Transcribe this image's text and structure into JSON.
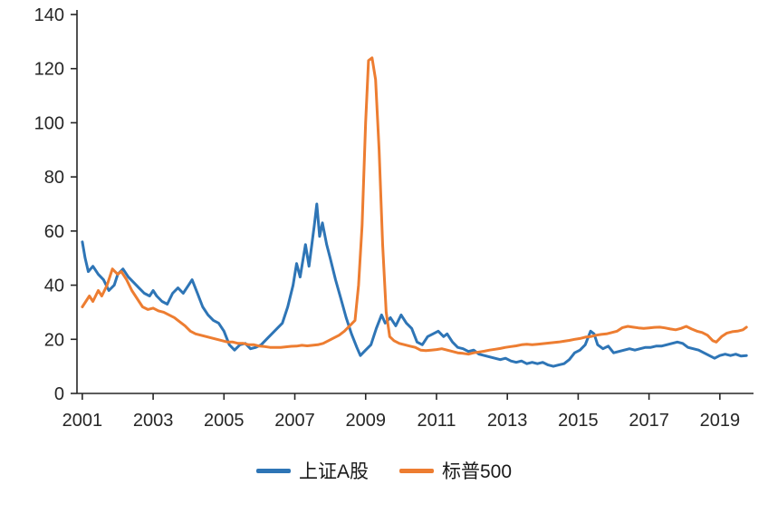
{
  "chart_data": {
    "type": "line",
    "title": "",
    "xlabel": "",
    "ylabel": "",
    "grid": false,
    "legend_position": "bottom",
    "background_color": "#ffffff",
    "axis_color": "#262626",
    "ylim": [
      0,
      140
    ],
    "yticks": [
      0,
      20,
      40,
      60,
      80,
      100,
      120,
      140
    ],
    "xlim": [
      2000.85,
      2019.95
    ],
    "xticks": [
      2001,
      2003,
      2005,
      2007,
      2009,
      2011,
      2013,
      2015,
      2017,
      2019
    ],
    "series": [
      {
        "name": "上证A股",
        "color": "#2E75B6",
        "points": [
          [
            2001.0,
            56
          ],
          [
            2001.08,
            50
          ],
          [
            2001.17,
            45
          ],
          [
            2001.3,
            47
          ],
          [
            2001.45,
            44
          ],
          [
            2001.6,
            42
          ],
          [
            2001.75,
            38
          ],
          [
            2001.9,
            40
          ],
          [
            2002.0,
            44
          ],
          [
            2002.15,
            46
          ],
          [
            2002.3,
            43
          ],
          [
            2002.45,
            41
          ],
          [
            2002.6,
            39
          ],
          [
            2002.75,
            37
          ],
          [
            2002.9,
            36
          ],
          [
            2003.0,
            38
          ],
          [
            2003.1,
            36
          ],
          [
            2003.25,
            34
          ],
          [
            2003.4,
            33
          ],
          [
            2003.55,
            37
          ],
          [
            2003.7,
            39
          ],
          [
            2003.85,
            37
          ],
          [
            2004.0,
            40
          ],
          [
            2004.1,
            42
          ],
          [
            2004.25,
            37
          ],
          [
            2004.4,
            32
          ],
          [
            2004.55,
            29
          ],
          [
            2004.7,
            27
          ],
          [
            2004.85,
            26
          ],
          [
            2005.0,
            23
          ],
          [
            2005.15,
            18
          ],
          [
            2005.3,
            16
          ],
          [
            2005.45,
            18
          ],
          [
            2005.6,
            18.5
          ],
          [
            2005.75,
            16.5
          ],
          [
            2005.9,
            17
          ],
          [
            2006.05,
            18
          ],
          [
            2006.2,
            20
          ],
          [
            2006.35,
            22
          ],
          [
            2006.5,
            24
          ],
          [
            2006.65,
            26
          ],
          [
            2006.8,
            32
          ],
          [
            2006.95,
            40
          ],
          [
            2007.05,
            48
          ],
          [
            2007.15,
            43
          ],
          [
            2007.3,
            55
          ],
          [
            2007.4,
            47
          ],
          [
            2007.55,
            62
          ],
          [
            2007.62,
            70
          ],
          [
            2007.7,
            58
          ],
          [
            2007.78,
            63
          ],
          [
            2007.9,
            55
          ],
          [
            2008.0,
            50
          ],
          [
            2008.15,
            42
          ],
          [
            2008.3,
            35
          ],
          [
            2008.45,
            28
          ],
          [
            2008.6,
            22
          ],
          [
            2008.75,
            17
          ],
          [
            2008.85,
            14
          ],
          [
            2009.0,
            16
          ],
          [
            2009.15,
            18
          ],
          [
            2009.3,
            24
          ],
          [
            2009.45,
            29
          ],
          [
            2009.55,
            26
          ],
          [
            2009.7,
            28
          ],
          [
            2009.85,
            25
          ],
          [
            2010.0,
            29
          ],
          [
            2010.15,
            26
          ],
          [
            2010.3,
            24
          ],
          [
            2010.45,
            19
          ],
          [
            2010.6,
            18
          ],
          [
            2010.75,
            21
          ],
          [
            2010.9,
            22
          ],
          [
            2011.05,
            23
          ],
          [
            2011.2,
            21
          ],
          [
            2011.3,
            22
          ],
          [
            2011.45,
            19
          ],
          [
            2011.6,
            17
          ],
          [
            2011.75,
            16.5
          ],
          [
            2011.9,
            15.5
          ],
          [
            2012.05,
            16
          ],
          [
            2012.2,
            14.5
          ],
          [
            2012.35,
            14
          ],
          [
            2012.5,
            13.5
          ],
          [
            2012.65,
            13
          ],
          [
            2012.8,
            12.5
          ],
          [
            2012.95,
            13
          ],
          [
            2013.1,
            12
          ],
          [
            2013.25,
            11.5
          ],
          [
            2013.4,
            12
          ],
          [
            2013.55,
            11
          ],
          [
            2013.7,
            11.5
          ],
          [
            2013.85,
            11
          ],
          [
            2014.0,
            11.5
          ],
          [
            2014.15,
            10.5
          ],
          [
            2014.3,
            10
          ],
          [
            2014.45,
            10.5
          ],
          [
            2014.6,
            11
          ],
          [
            2014.75,
            12.5
          ],
          [
            2014.9,
            15
          ],
          [
            2015.05,
            16
          ],
          [
            2015.2,
            18
          ],
          [
            2015.35,
            23
          ],
          [
            2015.45,
            22
          ],
          [
            2015.55,
            18
          ],
          [
            2015.7,
            16.5
          ],
          [
            2015.85,
            17.5
          ],
          [
            2016.0,
            15
          ],
          [
            2016.15,
            15.5
          ],
          [
            2016.3,
            16
          ],
          [
            2016.45,
            16.5
          ],
          [
            2016.6,
            16
          ],
          [
            2016.75,
            16.5
          ],
          [
            2016.9,
            17
          ],
          [
            2017.05,
            17
          ],
          [
            2017.2,
            17.5
          ],
          [
            2017.35,
            17.5
          ],
          [
            2017.5,
            18
          ],
          [
            2017.65,
            18.5
          ],
          [
            2017.8,
            19
          ],
          [
            2017.95,
            18.5
          ],
          [
            2018.1,
            17
          ],
          [
            2018.25,
            16.5
          ],
          [
            2018.4,
            16
          ],
          [
            2018.55,
            15
          ],
          [
            2018.7,
            14
          ],
          [
            2018.85,
            13
          ],
          [
            2019.0,
            14
          ],
          [
            2019.15,
            14.5
          ],
          [
            2019.3,
            14
          ],
          [
            2019.45,
            14.5
          ],
          [
            2019.6,
            13.8
          ],
          [
            2019.75,
            14
          ]
        ]
      },
      {
        "name": "标普500",
        "color": "#ED7D31",
        "points": [
          [
            2001.0,
            32
          ],
          [
            2001.1,
            34
          ],
          [
            2001.2,
            36
          ],
          [
            2001.3,
            34
          ],
          [
            2001.45,
            38
          ],
          [
            2001.55,
            36
          ],
          [
            2001.7,
            40
          ],
          [
            2001.85,
            46
          ],
          [
            2002.0,
            44
          ],
          [
            2002.1,
            45
          ],
          [
            2002.25,
            42
          ],
          [
            2002.4,
            38
          ],
          [
            2002.55,
            35
          ],
          [
            2002.7,
            32
          ],
          [
            2002.85,
            31
          ],
          [
            2003.0,
            31.5
          ],
          [
            2003.15,
            30.5
          ],
          [
            2003.3,
            30
          ],
          [
            2003.45,
            29
          ],
          [
            2003.6,
            28
          ],
          [
            2003.75,
            26.5
          ],
          [
            2003.9,
            25
          ],
          [
            2004.05,
            23
          ],
          [
            2004.2,
            22
          ],
          [
            2004.35,
            21.5
          ],
          [
            2004.5,
            21
          ],
          [
            2004.65,
            20.5
          ],
          [
            2004.8,
            20
          ],
          [
            2004.95,
            19.5
          ],
          [
            2005.1,
            19
          ],
          [
            2005.25,
            19
          ],
          [
            2005.4,
            18.5
          ],
          [
            2005.55,
            18.5
          ],
          [
            2005.7,
            18
          ],
          [
            2005.85,
            18
          ],
          [
            2006.0,
            17.5
          ],
          [
            2006.15,
            17.3
          ],
          [
            2006.3,
            17
          ],
          [
            2006.45,
            17
          ],
          [
            2006.6,
            17
          ],
          [
            2006.75,
            17.2
          ],
          [
            2006.9,
            17.4
          ],
          [
            2007.05,
            17.5
          ],
          [
            2007.2,
            17.8
          ],
          [
            2007.35,
            17.6
          ],
          [
            2007.5,
            17.8
          ],
          [
            2007.65,
            18
          ],
          [
            2007.8,
            18.5
          ],
          [
            2007.95,
            19.5
          ],
          [
            2008.1,
            20.5
          ],
          [
            2008.25,
            21.5
          ],
          [
            2008.4,
            23
          ],
          [
            2008.55,
            25
          ],
          [
            2008.7,
            27
          ],
          [
            2008.8,
            40
          ],
          [
            2008.9,
            62
          ],
          [
            2009.0,
            100
          ],
          [
            2009.08,
            123
          ],
          [
            2009.18,
            124
          ],
          [
            2009.28,
            116
          ],
          [
            2009.38,
            90
          ],
          [
            2009.48,
            55
          ],
          [
            2009.58,
            30
          ],
          [
            2009.68,
            21
          ],
          [
            2009.8,
            19.5
          ],
          [
            2009.95,
            18.5
          ],
          [
            2010.1,
            18
          ],
          [
            2010.25,
            17.5
          ],
          [
            2010.4,
            17
          ],
          [
            2010.55,
            16
          ],
          [
            2010.7,
            15.8
          ],
          [
            2010.85,
            16
          ],
          [
            2011.0,
            16.2
          ],
          [
            2011.15,
            16.5
          ],
          [
            2011.3,
            16
          ],
          [
            2011.45,
            15.5
          ],
          [
            2011.6,
            15
          ],
          [
            2011.75,
            14.8
          ],
          [
            2011.9,
            14.5
          ],
          [
            2012.05,
            15
          ],
          [
            2012.2,
            15.3
          ],
          [
            2012.35,
            15.6
          ],
          [
            2012.5,
            16
          ],
          [
            2012.65,
            16.3
          ],
          [
            2012.8,
            16.6
          ],
          [
            2012.95,
            17
          ],
          [
            2013.1,
            17.3
          ],
          [
            2013.25,
            17.6
          ],
          [
            2013.4,
            18
          ],
          [
            2013.55,
            18.2
          ],
          [
            2013.7,
            18
          ],
          [
            2013.85,
            18.2
          ],
          [
            2014.0,
            18.4
          ],
          [
            2014.15,
            18.6
          ],
          [
            2014.3,
            18.8
          ],
          [
            2014.45,
            19
          ],
          [
            2014.6,
            19.3
          ],
          [
            2014.75,
            19.6
          ],
          [
            2014.9,
            20
          ],
          [
            2015.05,
            20.3
          ],
          [
            2015.2,
            20.8
          ],
          [
            2015.35,
            21
          ],
          [
            2015.5,
            21.5
          ],
          [
            2015.65,
            21.8
          ],
          [
            2015.8,
            22
          ],
          [
            2015.95,
            22.5
          ],
          [
            2016.1,
            23
          ],
          [
            2016.25,
            24.3
          ],
          [
            2016.4,
            24.8
          ],
          [
            2016.55,
            24.5
          ],
          [
            2016.7,
            24.2
          ],
          [
            2016.85,
            24
          ],
          [
            2017.0,
            24.2
          ],
          [
            2017.15,
            24.4
          ],
          [
            2017.3,
            24.5
          ],
          [
            2017.45,
            24.2
          ],
          [
            2017.6,
            23.8
          ],
          [
            2017.75,
            23.5
          ],
          [
            2017.9,
            24
          ],
          [
            2018.05,
            24.8
          ],
          [
            2018.2,
            23.8
          ],
          [
            2018.35,
            23
          ],
          [
            2018.5,
            22.5
          ],
          [
            2018.65,
            21.5
          ],
          [
            2018.8,
            19.5
          ],
          [
            2018.9,
            19
          ],
          [
            2019.05,
            21
          ],
          [
            2019.2,
            22.3
          ],
          [
            2019.35,
            22.8
          ],
          [
            2019.5,
            23
          ],
          [
            2019.65,
            23.5
          ],
          [
            2019.75,
            24.5
          ]
        ]
      }
    ]
  },
  "legend": {
    "items": [
      {
        "label": "上证A股"
      },
      {
        "label": "标普500"
      }
    ]
  }
}
